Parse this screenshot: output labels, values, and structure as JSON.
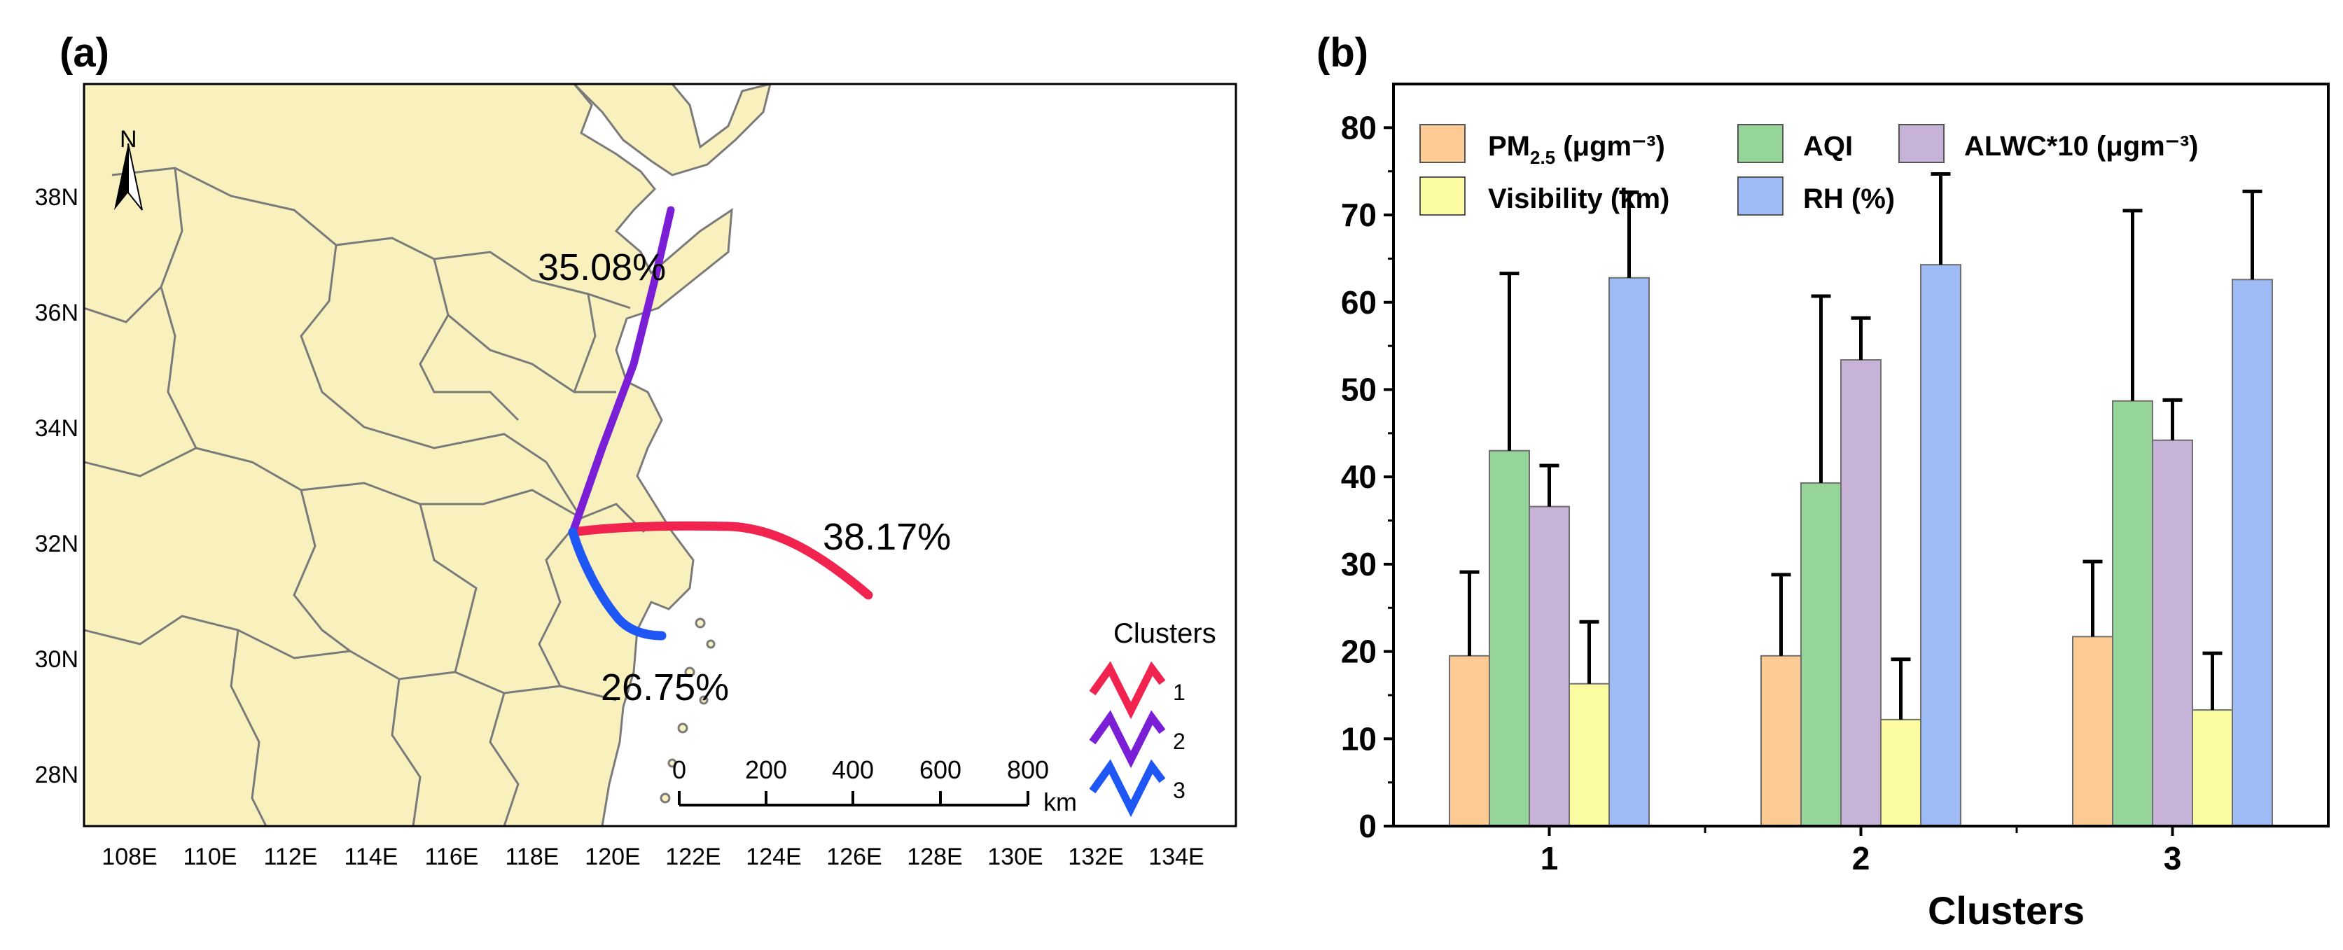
{
  "map_panel": {
    "label": "(a)",
    "north_label": "N",
    "lat_labels": [
      "38N",
      "36N",
      "34N",
      "32N",
      "30N",
      "28N"
    ],
    "lon_labels": [
      "108E",
      "110E",
      "112E",
      "114E",
      "116E",
      "118E",
      "120E",
      "122E",
      "124E",
      "126E",
      "128E",
      "130E",
      "132E",
      "134E"
    ],
    "trajectories": [
      {
        "cluster": "1",
        "percent": "38.17%",
        "color": "#f0244f"
      },
      {
        "cluster": "2",
        "percent": "35.08%",
        "color": "#7a1fd6"
      },
      {
        "cluster": "3",
        "percent": "26.75%",
        "color": "#1f57f5"
      }
    ],
    "legend_title": "Clusters",
    "legend_items": [
      "1",
      "2",
      "3"
    ],
    "scale_labels": [
      "0",
      "200",
      "400",
      "600",
      "800"
    ],
    "scale_unit": "km",
    "colors": {
      "land": "#f9f1bd",
      "sea": "#ffffff",
      "border": "#7a7a7a"
    }
  },
  "chart_panel": {
    "label": "(b)",
    "chart_data": {
      "type": "bar",
      "xlabel": "Clusters",
      "ylabel": "",
      "ylim": [
        0,
        85
      ],
      "yticks": [
        "0",
        "10",
        "20",
        "30",
        "40",
        "50",
        "60",
        "70",
        "80"
      ],
      "categories": [
        "1",
        "2",
        "3"
      ],
      "series": [
        {
          "name_main": "PM",
          "name_sub": "2.5",
          "name_rest": " (μgm⁻³)",
          "color": "#fccb94",
          "values": [
            19.5,
            19.5,
            21.7
          ],
          "errors": [
            9.6,
            9.3,
            8.6
          ]
        },
        {
          "name_main": "AQI",
          "name_sub": "",
          "name_rest": "",
          "color": "#96d59a",
          "values": [
            43,
            39.3,
            48.7
          ],
          "errors": [
            20.3,
            21.4,
            21.8
          ]
        },
        {
          "name_main": "ALWC*10 (μgm⁻³)",
          "name_sub": "",
          "name_rest": "",
          "color": "#c7b3d8",
          "values": [
            36.6,
            53.4,
            44.2
          ],
          "errors": [
            4.7,
            4.8,
            4.6
          ]
        },
        {
          "name_main": "Visibility (km)",
          "name_sub": "",
          "name_rest": "",
          "color": "#fbfba1",
          "values": [
            16.3,
            12.2,
            13.3
          ],
          "errors": [
            7.1,
            6.9,
            6.5
          ]
        },
        {
          "name_main": "RH (%)",
          "name_sub": "",
          "name_rest": "",
          "color": "#9ebbf6",
          "values": [
            62.8,
            64.3,
            62.6
          ],
          "errors": [
            9.8,
            10.4,
            10.1
          ]
        }
      ],
      "legend_position": "top-left"
    }
  }
}
